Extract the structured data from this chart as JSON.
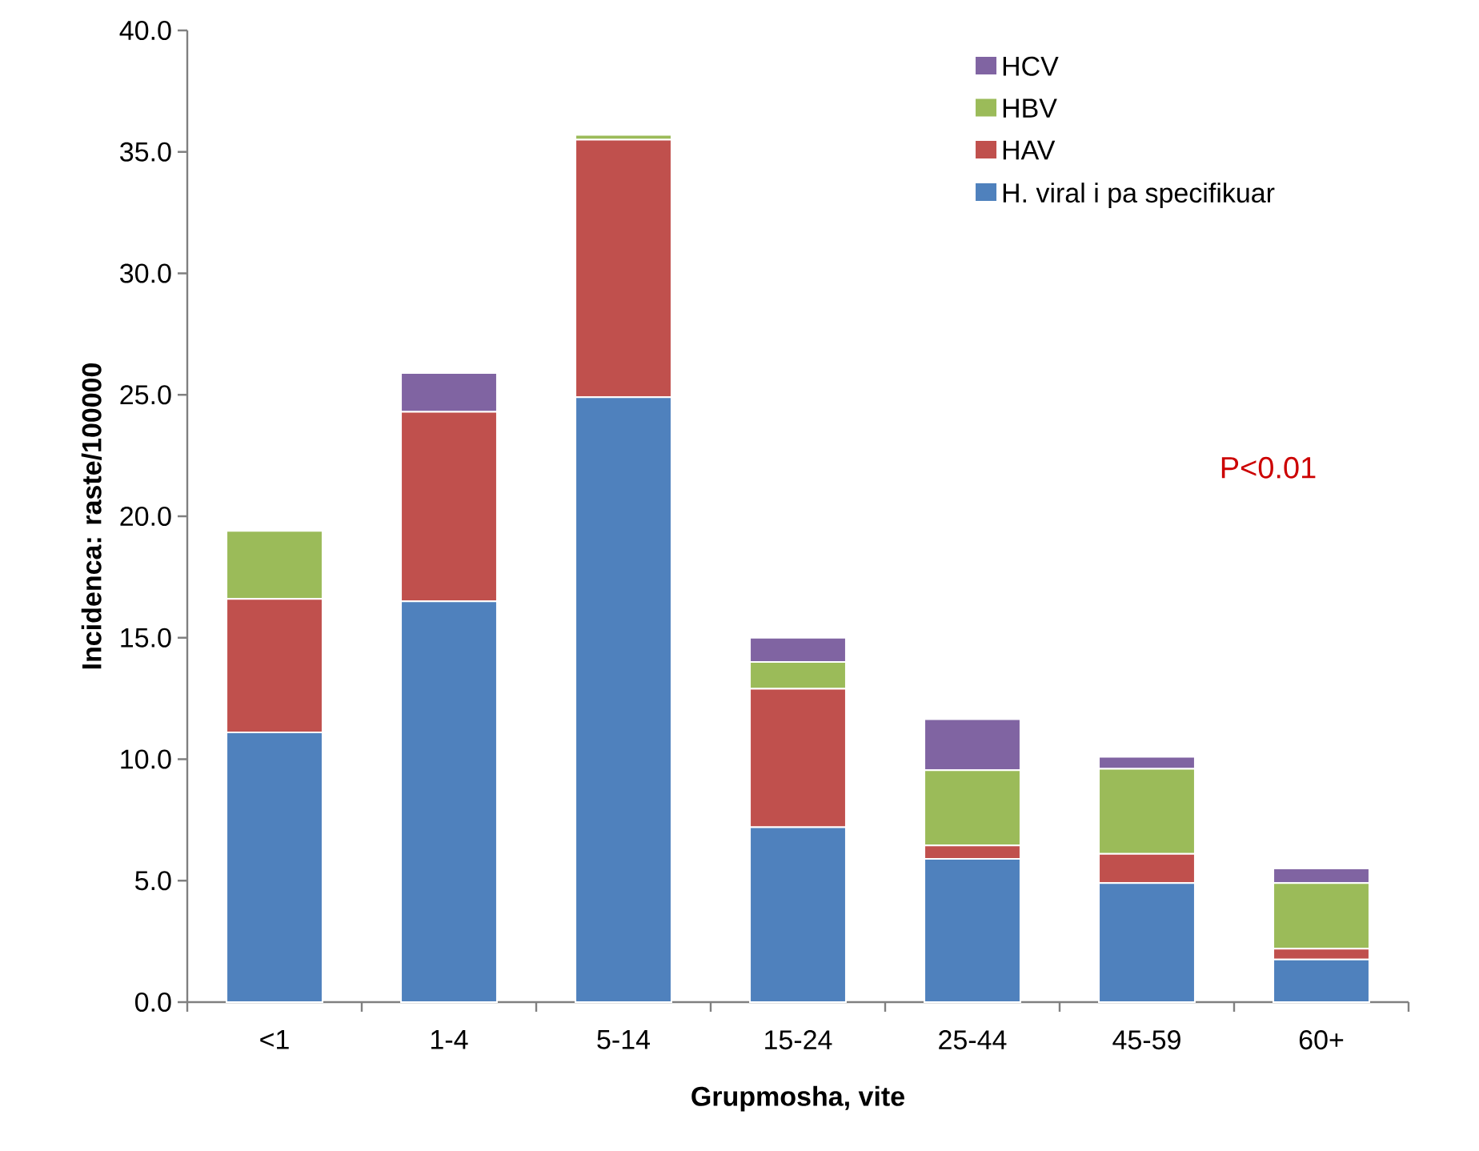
{
  "chart_data": {
    "type": "bar",
    "stacked": true,
    "xlabel": "Grupmosha, vite",
    "ylabel": "Incidenca: raste/100000",
    "categories": [
      "<1",
      "1-4",
      "5-14",
      "15-24",
      "25-44",
      "45-59",
      "60+"
    ],
    "series": [
      {
        "name": "H. viral i pa specifikuar",
        "color": "#4f81bd",
        "values": [
          11.1,
          16.5,
          24.9,
          7.2,
          5.9,
          4.9,
          1.75
        ]
      },
      {
        "name": "HAV",
        "color": "#c0504d",
        "values": [
          5.5,
          7.8,
          10.6,
          5.7,
          0.55,
          1.2,
          0.45
        ]
      },
      {
        "name": "HBV",
        "color": "#9bbb59",
        "values": [
          2.8,
          0,
          0.2,
          1.1,
          3.1,
          3.5,
          2.7
        ]
      },
      {
        "name": "HCV",
        "color": "#8064a2",
        "values": [
          0,
          1.6,
          0,
          1.0,
          2.1,
          0.5,
          0.6
        ]
      }
    ],
    "ylim": [
      0,
      40
    ],
    "yticks": [
      {
        "value": 0,
        "label": "0.0"
      },
      {
        "value": 5,
        "label": "5.0"
      },
      {
        "value": 10,
        "label": "10.0"
      },
      {
        "value": 15,
        "label": "15.0"
      },
      {
        "value": 20,
        "label": "20.0"
      },
      {
        "value": 25,
        "label": "25.0"
      },
      {
        "value": 30,
        "label": "30.0"
      },
      {
        "value": 35,
        "label": "35.0"
      },
      {
        "value": 40,
        "label": "40.0"
      }
    ],
    "legend": "top right",
    "grid": false,
    "annotations": [
      "P<0.01"
    ]
  }
}
